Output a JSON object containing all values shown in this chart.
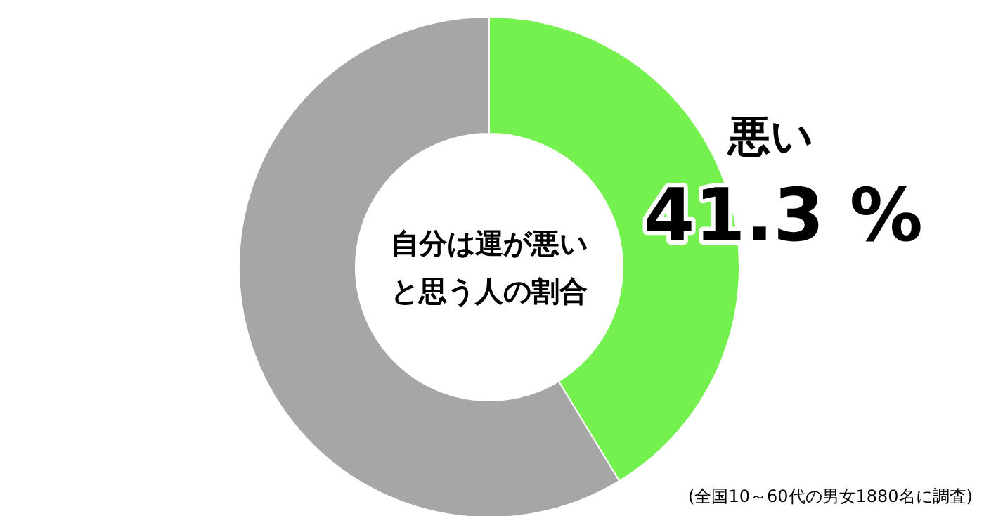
{
  "chart_data": {
    "type": "donut",
    "title": "自分は運が悪いと思う人の割合",
    "categories": [
      "悪い",
      null
    ],
    "values": [
      41.3,
      58.7
    ],
    "colors": [
      "#74f04f",
      "#a6a6a6"
    ],
    "value_labels": [
      "41.3 %",
      null
    ],
    "annotations": [
      "(全国10～60代の男女1880名に調査)"
    ]
  }
}
